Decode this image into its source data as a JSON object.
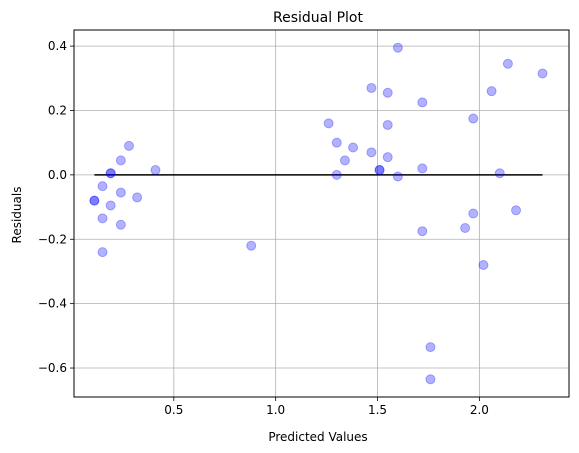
{
  "chart_data": {
    "type": "scatter",
    "title": "Residual Plot",
    "xlabel": "Predicted Values",
    "ylabel": "Residuals",
    "xlim": [
      0.01,
      2.44
    ],
    "ylim": [
      -0.69,
      0.45
    ],
    "xticks": [
      0.5,
      1.0,
      1.5,
      2.0
    ],
    "xtick_labels": [
      "0.5",
      "1.0",
      "1.5",
      "2.0"
    ],
    "yticks": [
      -0.6,
      -0.4,
      -0.2,
      0.0,
      0.2,
      0.4
    ],
    "ytick_labels": [
      "−0.6",
      "−0.4",
      "−0.2",
      "0.0",
      "0.2",
      "0.4"
    ],
    "grid": true,
    "point_color": "#0000ff",
    "point_alpha": 0.3,
    "zero_line": {
      "x": [
        0.11,
        2.31
      ],
      "y": 0.0,
      "color": "#000000"
    },
    "points": [
      {
        "x": 0.11,
        "y": -0.08
      },
      {
        "x": 0.11,
        "y": -0.08
      },
      {
        "x": 0.15,
        "y": -0.035
      },
      {
        "x": 0.15,
        "y": -0.135
      },
      {
        "x": 0.15,
        "y": -0.24
      },
      {
        "x": 0.19,
        "y": 0.005
      },
      {
        "x": 0.19,
        "y": 0.005
      },
      {
        "x": 0.19,
        "y": -0.095
      },
      {
        "x": 0.24,
        "y": 0.045
      },
      {
        "x": 0.24,
        "y": -0.055
      },
      {
        "x": 0.24,
        "y": -0.155
      },
      {
        "x": 0.28,
        "y": 0.09
      },
      {
        "x": 0.32,
        "y": -0.07
      },
      {
        "x": 0.41,
        "y": 0.015
      },
      {
        "x": 0.88,
        "y": -0.22
      },
      {
        "x": 1.26,
        "y": 0.16
      },
      {
        "x": 1.3,
        "y": 0.1
      },
      {
        "x": 1.3,
        "y": 0.0
      },
      {
        "x": 1.34,
        "y": 0.045
      },
      {
        "x": 1.38,
        "y": 0.085
      },
      {
        "x": 1.47,
        "y": 0.27
      },
      {
        "x": 1.47,
        "y": 0.07
      },
      {
        "x": 1.51,
        "y": 0.015
      },
      {
        "x": 1.51,
        "y": 0.015
      },
      {
        "x": 1.55,
        "y": 0.255
      },
      {
        "x": 1.55,
        "y": 0.155
      },
      {
        "x": 1.55,
        "y": 0.055
      },
      {
        "x": 1.6,
        "y": 0.395
      },
      {
        "x": 1.6,
        "y": -0.005
      },
      {
        "x": 1.72,
        "y": 0.225
      },
      {
        "x": 1.72,
        "y": 0.02
      },
      {
        "x": 1.72,
        "y": -0.175
      },
      {
        "x": 1.76,
        "y": -0.535
      },
      {
        "x": 1.76,
        "y": -0.635
      },
      {
        "x": 1.93,
        "y": -0.165
      },
      {
        "x": 1.97,
        "y": 0.175
      },
      {
        "x": 1.97,
        "y": -0.12
      },
      {
        "x": 2.02,
        "y": -0.28
      },
      {
        "x": 2.06,
        "y": 0.26
      },
      {
        "x": 2.1,
        "y": 0.005
      },
      {
        "x": 2.14,
        "y": 0.345
      },
      {
        "x": 2.18,
        "y": -0.11
      },
      {
        "x": 2.31,
        "y": 0.315
      }
    ]
  }
}
